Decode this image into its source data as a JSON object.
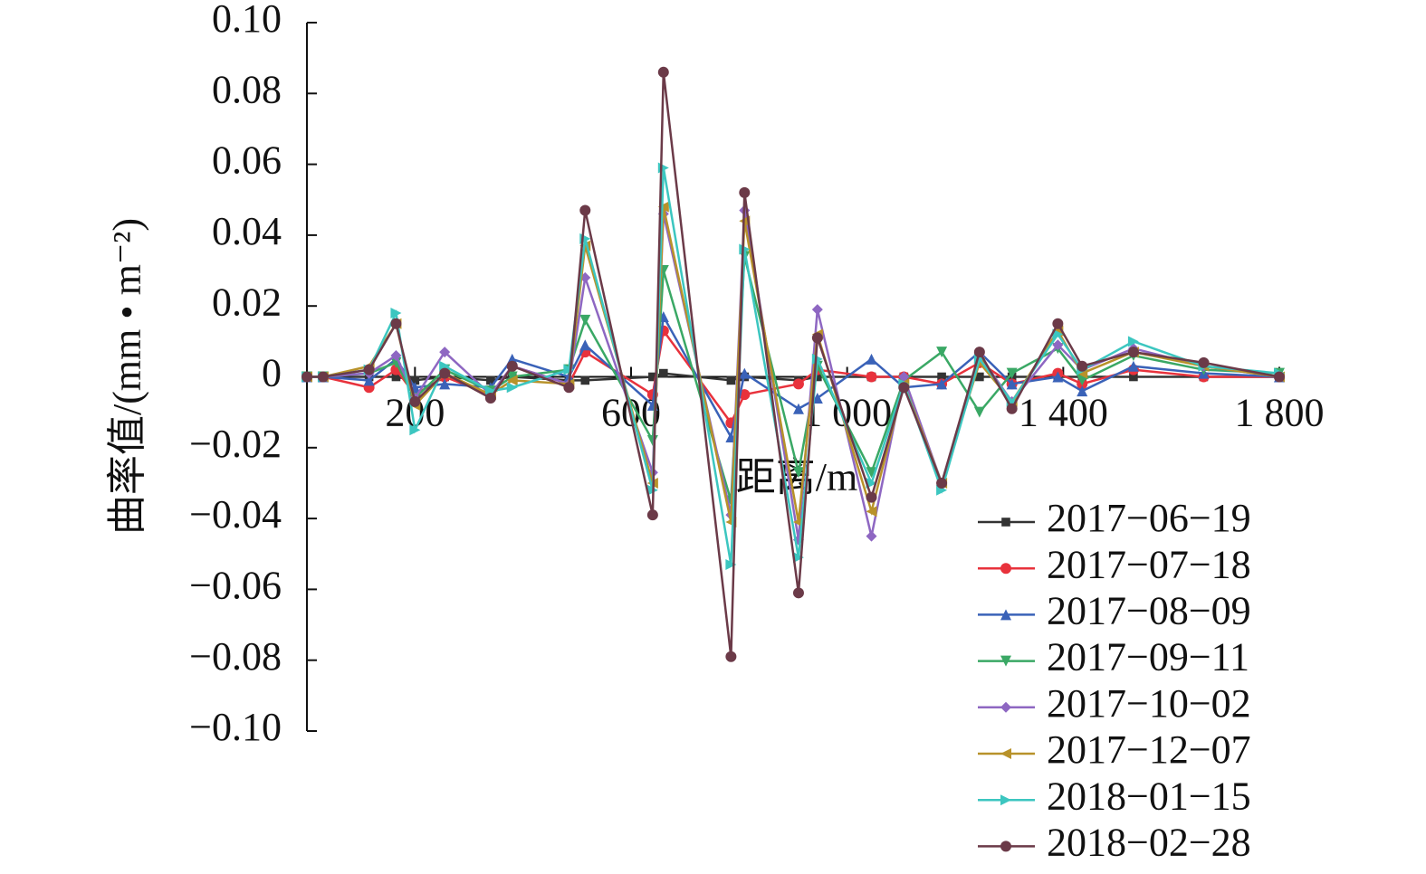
{
  "chart_data": {
    "type": "line",
    "ylabel": "曲率值/(mm • m⁻²)",
    "xlabel": "距离/m",
    "x": [
      0,
      30,
      115,
      165,
      200,
      255,
      340,
      380,
      485,
      515,
      640,
      660,
      785,
      810,
      910,
      945,
      1045,
      1105,
      1175,
      1245,
      1305,
      1390,
      1435,
      1530,
      1660,
      1800
    ],
    "xlim": [
      0,
      1800
    ],
    "xticks": [
      200,
      600,
      {
        "value": 1000,
        "label": "1 000"
      },
      {
        "value": 1400,
        "label": "1 400"
      },
      {
        "value": 1800,
        "label": "1 800"
      }
    ],
    "ylim": [
      -0.1,
      0.1
    ],
    "yticks": [
      {
        "value": 0.1,
        "label": "0.10"
      },
      0.08,
      0.06,
      0.04,
      0.02,
      0,
      {
        "value": -0.02,
        "label": "−0.02"
      },
      {
        "value": -0.04,
        "label": "−0.04"
      },
      {
        "value": -0.06,
        "label": "−0.06"
      },
      {
        "value": -0.08,
        "label": "−0.08"
      },
      {
        "value": -0.1,
        "label": "−0.10"
      }
    ],
    "legend": "lower right",
    "series": [
      {
        "name": "2017−06−19",
        "color": "#333333",
        "marker": "square",
        "values": [
          0,
          0,
          0,
          0,
          -0.001,
          0,
          -0.001,
          0,
          -0.001,
          -0.001,
          0,
          0.001,
          -0.001,
          0,
          -0.001,
          0,
          0,
          0,
          0,
          0,
          0,
          0,
          0,
          0,
          0,
          0
        ]
      },
      {
        "name": "2017−07−18",
        "color": "#e8323c",
        "marker": "circle",
        "values": [
          0,
          0,
          -0.003,
          0.002,
          -0.005,
          0,
          -0.005,
          0.003,
          -0.002,
          0.007,
          -0.005,
          0.013,
          -0.013,
          -0.005,
          -0.002,
          0.002,
          0,
          0,
          -0.002,
          0.004,
          -0.002,
          0.001,
          -0.002,
          0.002,
          0,
          0
        ]
      },
      {
        "name": "2017−08−09",
        "color": "#3a62b8",
        "marker": "up",
        "values": [
          0,
          0,
          -0.001,
          0.005,
          -0.003,
          -0.002,
          -0.003,
          0.005,
          0,
          0.009,
          -0.008,
          0.017,
          -0.017,
          0.001,
          -0.009,
          -0.006,
          0.005,
          -0.003,
          -0.002,
          0.007,
          -0.002,
          0,
          -0.004,
          0.003,
          0.001,
          0
        ]
      },
      {
        "name": "2017−09−11",
        "color": "#3aa865",
        "marker": "down",
        "values": [
          0,
          0,
          0.001,
          0.004,
          -0.006,
          0.002,
          -0.004,
          0,
          0.002,
          0.016,
          -0.018,
          0.03,
          -0.035,
          0.034,
          -0.027,
          0.003,
          -0.027,
          -0.001,
          0.007,
          -0.01,
          0.001,
          0.008,
          -0.001,
          0.006,
          0.002,
          0.001
        ]
      },
      {
        "name": "2017−10−02",
        "color": "#8e67c2",
        "marker": "diamond",
        "values": [
          0,
          0,
          0.001,
          0.006,
          -0.006,
          0.007,
          -0.005,
          0.003,
          -0.002,
          0.028,
          -0.027,
          0.046,
          -0.039,
          0.047,
          -0.046,
          0.019,
          -0.045,
          0,
          -0.03,
          0.006,
          -0.007,
          0.009,
          0.002,
          0.008,
          0.003,
          0
        ]
      },
      {
        "name": "2017−12−07",
        "color": "#b8922a",
        "marker": "left",
        "values": [
          0,
          0,
          0.003,
          0.015,
          -0.008,
          0.001,
          -0.005,
          -0.001,
          -0.002,
          0.037,
          -0.03,
          0.048,
          -0.041,
          0.044,
          -0.041,
          0.012,
          -0.038,
          -0.002,
          -0.03,
          0.004,
          -0.007,
          0.013,
          0.001,
          0.007,
          0.003,
          0
        ]
      },
      {
        "name": "2018−01−15",
        "color": "#3cc6c0",
        "marker": "right",
        "values": [
          0,
          0,
          0.002,
          0.018,
          -0.015,
          0.003,
          -0.004,
          -0.003,
          0.002,
          0.039,
          -0.032,
          0.059,
          -0.053,
          0.036,
          -0.051,
          0.005,
          -0.03,
          -0.002,
          -0.032,
          0.005,
          -0.007,
          0.012,
          0.002,
          0.01,
          0.003,
          0.001
        ]
      },
      {
        "name": "2018−02−28",
        "color": "#6b3a48",
        "marker": "circle",
        "values": [
          0,
          0,
          0.002,
          0.015,
          -0.007,
          0.001,
          -0.006,
          0.003,
          -0.003,
          0.047,
          -0.039,
          0.086,
          -0.079,
          0.052,
          -0.061,
          0.011,
          -0.034,
          -0.003,
          -0.03,
          0.007,
          -0.009,
          0.015,
          0.003,
          0.007,
          0.004,
          0
        ]
      }
    ]
  }
}
